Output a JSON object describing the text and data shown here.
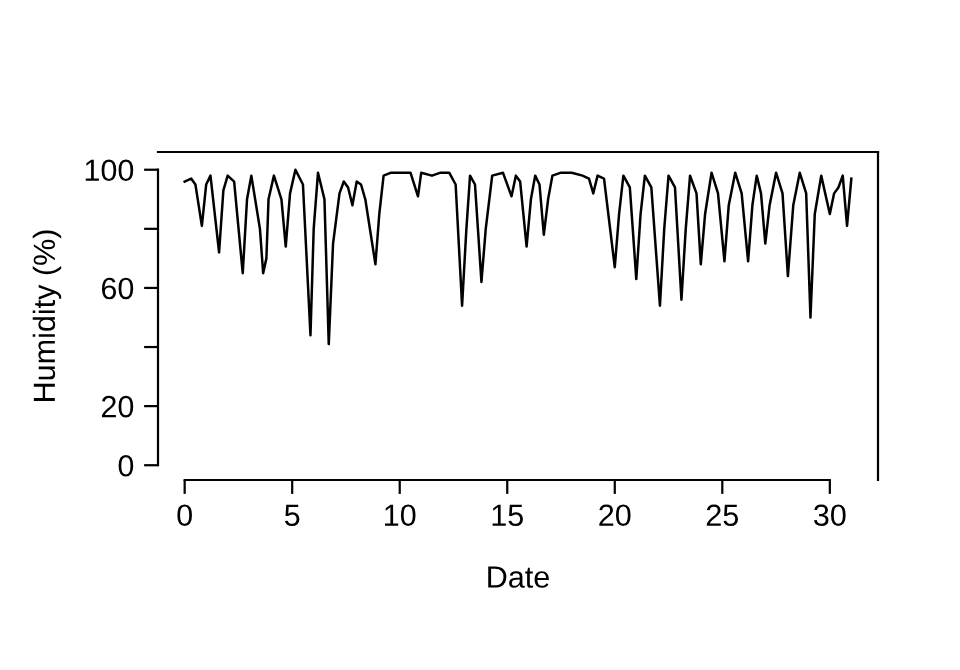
{
  "chart_data": {
    "type": "line",
    "xlabel": "Date",
    "ylabel": "Humidity (%)",
    "x": [
      0.0,
      0.3,
      0.5,
      0.8,
      1.0,
      1.2,
      1.6,
      1.8,
      2.0,
      2.3,
      2.7,
      2.9,
      3.1,
      3.5,
      3.65,
      3.8,
      3.9,
      4.15,
      4.5,
      4.7,
      4.9,
      5.15,
      5.5,
      5.85,
      6.0,
      6.2,
      6.5,
      6.7,
      6.9,
      7.2,
      7.4,
      7.6,
      7.8,
      8.0,
      8.2,
      8.4,
      8.87,
      9.05,
      9.25,
      9.6,
      10.0,
      10.5,
      10.85,
      11.0,
      11.5,
      11.9,
      12.3,
      12.6,
      12.9,
      13.1,
      13.27,
      13.5,
      13.8,
      14.0,
      14.3,
      14.8,
      15.2,
      15.4,
      15.6,
      15.9,
      16.1,
      16.3,
      16.5,
      16.7,
      16.9,
      17.1,
      17.5,
      18.0,
      18.5,
      18.8,
      19.0,
      19.2,
      19.5,
      20.0,
      20.2,
      20.4,
      20.7,
      21.0,
      21.2,
      21.4,
      21.7,
      22.1,
      22.3,
      22.5,
      22.8,
      23.1,
      23.3,
      23.5,
      23.8,
      24.0,
      24.2,
      24.5,
      24.8,
      25.1,
      25.3,
      25.6,
      25.9,
      26.2,
      26.4,
      26.6,
      26.8,
      27.0,
      27.2,
      27.5,
      27.8,
      28.05,
      28.3,
      28.6,
      28.9,
      29.1,
      29.3,
      29.6,
      30.0,
      30.2,
      30.4,
      30.6,
      30.8,
      31.0
    ],
    "series": [
      {
        "color": "#000000",
        "values": [
          96,
          97,
          95,
          81,
          95,
          98,
          72,
          93,
          98,
          96,
          65,
          90,
          98,
          80,
          65,
          70,
          90,
          98,
          90,
          74,
          92,
          100,
          95,
          44,
          80,
          99,
          90,
          41,
          75,
          92,
          96,
          94,
          88,
          96,
          95,
          90,
          68,
          85,
          98,
          99,
          99,
          99,
          91,
          99,
          98,
          99,
          99,
          95,
          54,
          80,
          98,
          95,
          62,
          80,
          98,
          99,
          91,
          98,
          96,
          74,
          90,
          98,
          95,
          78,
          90,
          98,
          99,
          99,
          98,
          97,
          92,
          98,
          97,
          67,
          85,
          98,
          94,
          63,
          85,
          98,
          94,
          54,
          80,
          98,
          94,
          56,
          80,
          98,
          92,
          68,
          85,
          99,
          92,
          69,
          88,
          99,
          92,
          69,
          88,
          98,
          92,
          75,
          88,
          99,
          92,
          64,
          88,
          99,
          92,
          50,
          85,
          98,
          85,
          92,
          94,
          98,
          81,
          97
        ]
      }
    ],
    "xlim": [
      -1.24,
      32.24
    ],
    "ylim": [
      -5,
      106
    ],
    "xticks": [
      0,
      5,
      10,
      15,
      20,
      25,
      30
    ],
    "yticks": [
      0,
      20,
      {
        "value": 40,
        "label": null
      },
      60,
      {
        "value": 80,
        "label": null
      },
      100
    ],
    "grid": false,
    "line_style": "solid"
  }
}
